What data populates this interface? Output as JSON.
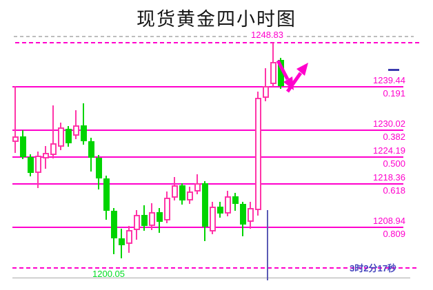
{
  "title": "现货黄金四小时图",
  "labels": {
    "high_price": "1248.83",
    "low_price": "1200.05",
    "countdown": "3时2分17秒"
  },
  "colors": {
    "magenta": "#ff00cc",
    "up_candle": "#ff35a8",
    "down_candle": "#00d400",
    "low_label_green": "#00dd22",
    "countdown_blue": "#4343bd",
    "gray_dash": "#bdbdbd",
    "axis_gray": "#a8a8a8",
    "marker_blue": "#5a5ab4",
    "title_color": "#141414"
  },
  "chart_data": {
    "type": "candlestick",
    "title": "现货黄金四小时图",
    "instrument": "现货黄金",
    "timeframe": "四小时",
    "axis": {
      "price_high": 1248.83,
      "price_low": 1200.05,
      "grid": "off",
      "y_labels_side": "right"
    },
    "swing_high_label": "1248.83",
    "swing_low_label": "1200.05",
    "current_bar_countdown": "3时2分17秒",
    "fib_levels": [
      {
        "price": 1239.44,
        "price_label": "1239.44",
        "ratio": 0.191,
        "ratio_label": "0.191"
      },
      {
        "price": 1230.02,
        "price_label": "1230.02",
        "ratio": 0.382,
        "ratio_label": "0.382"
      },
      {
        "price": 1224.19,
        "price_label": "1224.19",
        "ratio": 0.5,
        "ratio_label": "0.500"
      },
      {
        "price": 1218.36,
        "price_label": "1218.36",
        "ratio": 0.618,
        "ratio_label": "0.618"
      },
      {
        "price": 1208.94,
        "price_label": "1208.94",
        "ratio": 0.809,
        "ratio_label": "0.809"
      }
    ],
    "candles_format": [
      "open",
      "close",
      "high",
      "low"
    ],
    "candles": [
      [
        1227.4,
        1228.6,
        1239.4,
        1224.9
      ],
      [
        1228.6,
        1224.0,
        1229.9,
        1223.6
      ],
      [
        1224.0,
        1220.6,
        1224.6,
        1219.9
      ],
      [
        1220.6,
        1224.4,
        1225.2,
        1217.4
      ],
      [
        1223.8,
        1225.0,
        1226.4,
        1221.6
      ],
      [
        1224.5,
        1227.0,
        1235.3,
        1223.8
      ],
      [
        1226.3,
        1230.5,
        1231.5,
        1225.5
      ],
      [
        1230.2,
        1227.0,
        1230.8,
        1226.3
      ],
      [
        1228.7,
        1230.9,
        1234.2,
        1228.0
      ],
      [
        1230.9,
        1227.5,
        1235.7,
        1226.8
      ],
      [
        1227.5,
        1223.9,
        1228.2,
        1221.0
      ],
      [
        1223.9,
        1219.5,
        1224.5,
        1217.0
      ],
      [
        1219.5,
        1212.4,
        1220.0,
        1210.5
      ],
      [
        1212.4,
        1206.5,
        1213.0,
        1203.0
      ],
      [
        1206.5,
        1205.0,
        1208.5,
        1202.2
      ],
      [
        1205.2,
        1208.3,
        1209.2,
        1203.4
      ],
      [
        1208.3,
        1211.6,
        1212.6,
        1206.1
      ],
      [
        1211.6,
        1209.1,
        1213.6,
        1208.1
      ],
      [
        1209.1,
        1212.2,
        1214.1,
        1208.2
      ],
      [
        1212.2,
        1210.1,
        1213.1,
        1207.7
      ],
      [
        1210.4,
        1215.2,
        1216.6,
        1209.8
      ],
      [
        1215.2,
        1217.9,
        1219.8,
        1214.6
      ],
      [
        1217.9,
        1214.6,
        1218.4,
        1213.8
      ],
      [
        1214.6,
        1216.6,
        1217.6,
        1213.9
      ],
      [
        1216.6,
        1218.4,
        1220.4,
        1216.0
      ],
      [
        1218.4,
        1209.0,
        1218.9,
        1205.8
      ],
      [
        1207.9,
        1213.4,
        1214.3,
        1207.3
      ],
      [
        1213.4,
        1211.9,
        1214.4,
        1210.9
      ],
      [
        1211.9,
        1215.5,
        1216.8,
        1211.3
      ],
      [
        1215.5,
        1213.9,
        1216.3,
        1212.5
      ],
      [
        1213.9,
        1209.4,
        1214.4,
        1206.9
      ],
      [
        1210.0,
        1213.0,
        1214.3,
        1208.6
      ],
      [
        1212.6,
        1236.9,
        1238.3,
        1211.4
      ],
      [
        1236.9,
        1239.5,
        1243.3,
        1236.2
      ],
      [
        1239.9,
        1244.6,
        1248.83,
        1239.3
      ],
      [
        1245.1,
        1239.4,
        1245.6,
        1238.9
      ]
    ],
    "annotations": {
      "trend_arrows": "magenta down-then-up V arrows at 0.191 level",
      "current_bar_marker": "blue vertical line under latest bars",
      "current_price_tick": "small navy dash at right above 1239.44 label"
    }
  }
}
